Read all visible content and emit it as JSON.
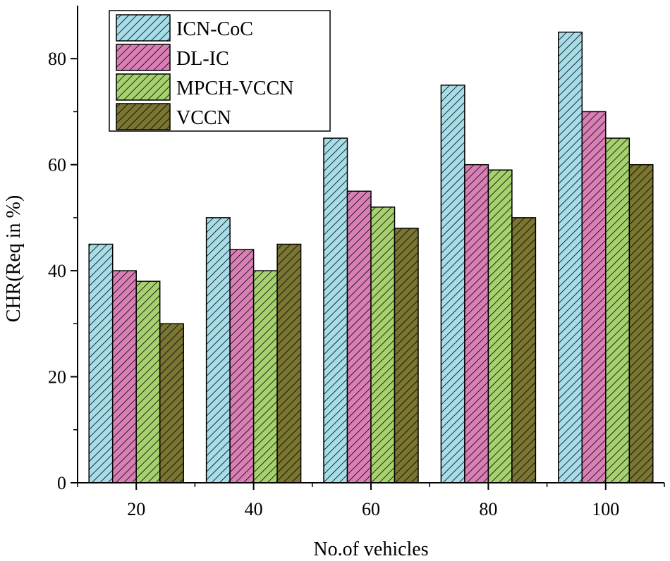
{
  "chart_data": {
    "type": "bar",
    "title": "",
    "xlabel": "No.of vehicles",
    "ylabel": "CHR(Req in %)",
    "categories": [
      "20",
      "40",
      "60",
      "80",
      "100"
    ],
    "ylim": [
      0,
      90
    ],
    "yticks": [
      0,
      20,
      40,
      60,
      80
    ],
    "legend_position": "top-left",
    "grid": false,
    "series": [
      {
        "name": "ICN-CoC",
        "values": [
          45,
          50,
          65,
          75,
          85
        ],
        "color": "#a6dde8"
      },
      {
        "name": "DL-IC",
        "values": [
          40,
          44,
          55,
          60,
          70
        ],
        "color": "#d97fb6"
      },
      {
        "name": "MPCH-VCCN",
        "values": [
          38,
          40,
          52,
          59,
          65
        ],
        "color": "#a6d16e"
      },
      {
        "name": "VCCN",
        "values": [
          30,
          45,
          48,
          50,
          60
        ],
        "color": "#7a7531"
      }
    ]
  }
}
